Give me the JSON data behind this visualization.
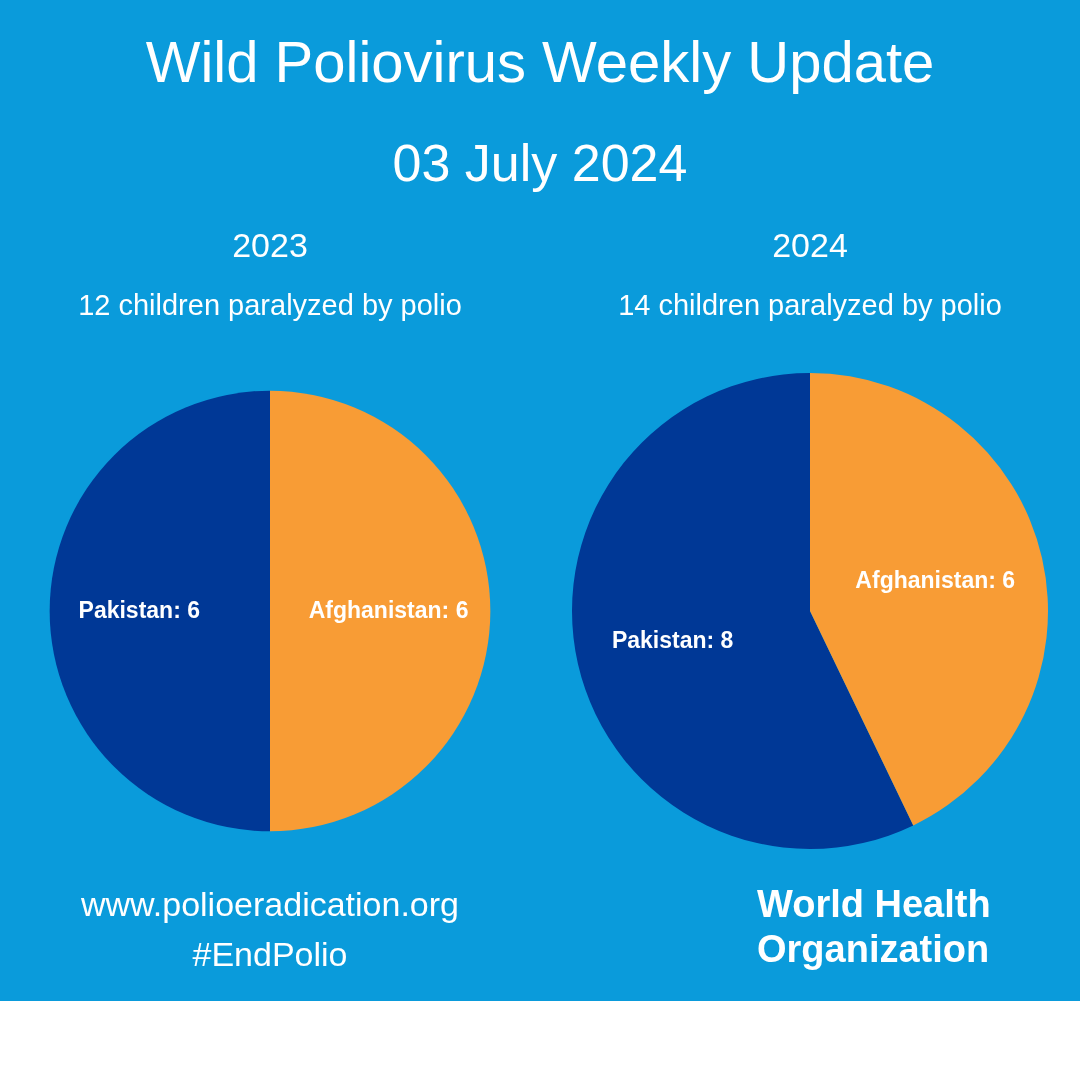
{
  "chart_data": [
    {
      "type": "other",
      "title": "Wild Poliovirus Weekly Update",
      "subtitle": "03 July 2024"
    },
    {
      "type": "pie",
      "title": "2023",
      "subtitle": "12 children paralyzed by polio",
      "categories": [
        "Pakistan",
        "Afghanistan"
      ],
      "values": [
        6,
        6
      ],
      "colors": [
        "#003896",
        "#f89c35"
      ],
      "value_labels": [
        ": 6",
        ": 6"
      ]
    },
    {
      "type": "pie",
      "title": "2024",
      "subtitle": "14 children paralyzed by polio",
      "categories": [
        "Pakistan",
        "Afghanistan"
      ],
      "values": [
        8,
        6
      ],
      "colors": [
        "#003896",
        "#f89c35"
      ],
      "value_labels": [
        ": 8",
        ": 6"
      ]
    },
    {
      "type": "other",
      "annotations": [
        "www.polioeradication.org",
        "#EndPolio",
        "World Health Organization"
      ]
    }
  ]
}
